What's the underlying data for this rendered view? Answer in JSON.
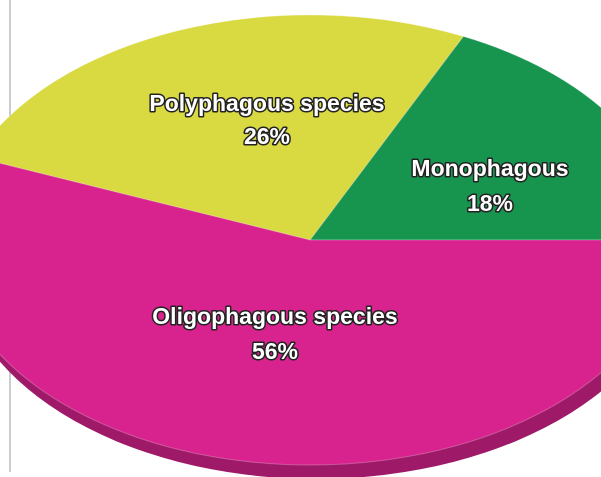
{
  "chart_data": {
    "type": "pie",
    "categories": [
      "Monophagous",
      "Polyphagous species",
      "Oligophagous species"
    ],
    "values": [
      18,
      26,
      56
    ],
    "value_labels": [
      "18%",
      "26%",
      "56%"
    ],
    "colors": [
      "#17954f",
      "#d9d942",
      "#d8238f"
    ]
  }
}
